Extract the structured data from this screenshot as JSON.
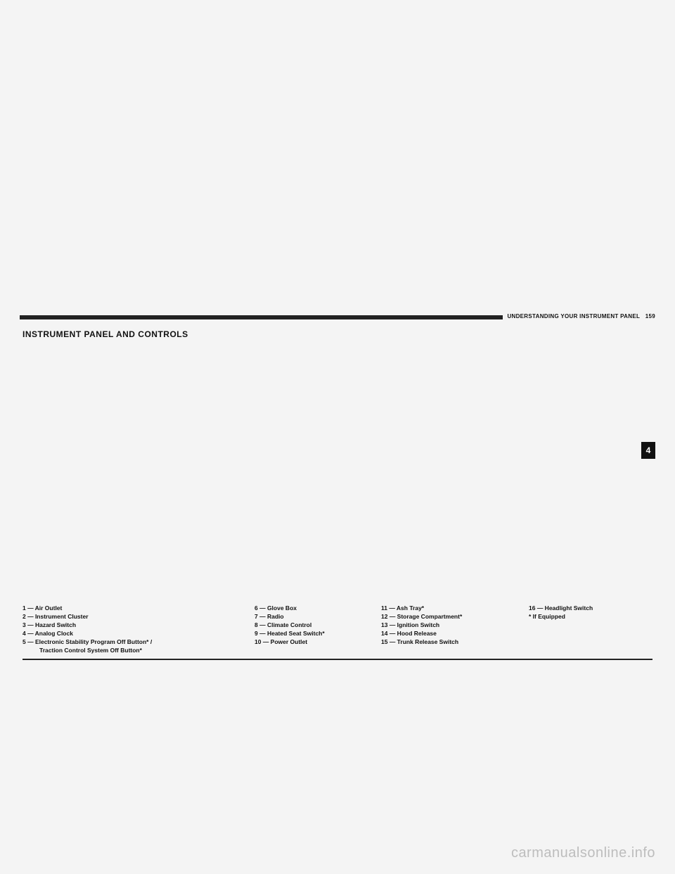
{
  "header": {
    "breadcrumb": "UNDERSTANDING YOUR INSTRUMENT PANEL",
    "page_number": "159"
  },
  "section_title": "INSTRUMENT PANEL AND CONTROLS",
  "side_tab": "4",
  "legend": {
    "col1": [
      "1 — Air Outlet",
      "2 — Instrument Cluster",
      "3 — Hazard Switch",
      "4 — Analog Clock",
      "5 — Electronic Stability Program Off Button* /",
      "Traction Control System Off Button*"
    ],
    "col2": [
      "6 — Glove Box",
      "7 — Radio",
      "8 — Climate Control",
      "9 — Heated Seat Switch*",
      "10 — Power Outlet"
    ],
    "col3": [
      "11 — Ash Tray*",
      "12 — Storage Compartment*",
      "13 — Ignition Switch",
      "14 — Hood Release",
      "15 — Trunk Release Switch"
    ],
    "col4": [
      "16 — Headlight Switch",
      "* If Equipped"
    ]
  },
  "watermark": "carmanualsonline.info"
}
